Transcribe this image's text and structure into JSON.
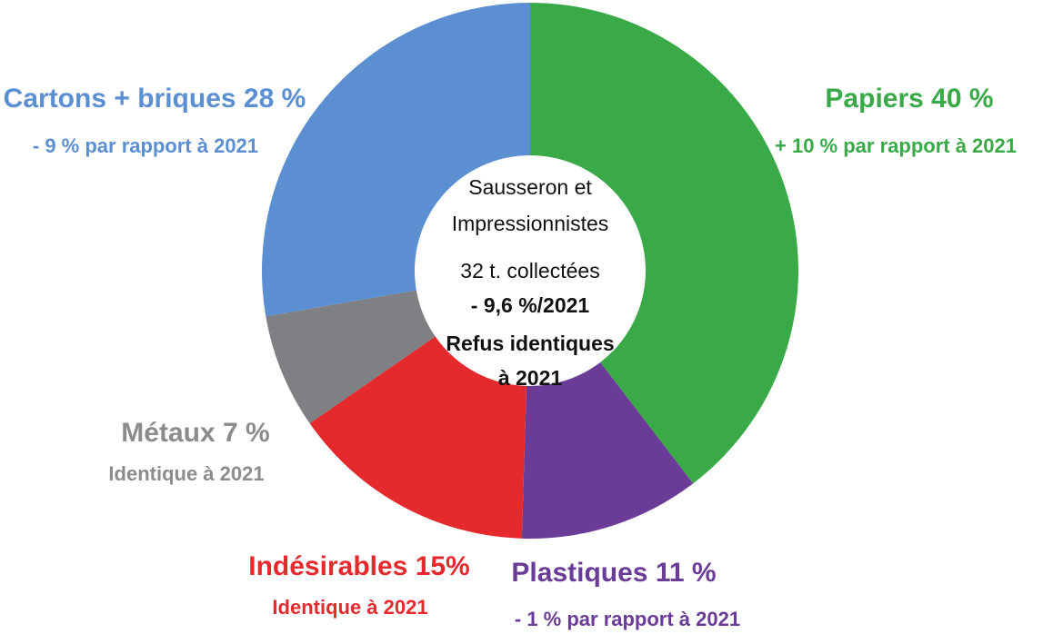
{
  "chart_data": {
    "type": "pie",
    "categories": [
      "Papiers",
      "Plastiques",
      "Indésirables",
      "Métaux",
      "Cartons + briques"
    ],
    "values": [
      40,
      11,
      15,
      7,
      28
    ],
    "value_labels": [
      "40 %",
      "11 %",
      "15%",
      "7 %",
      "28 %"
    ],
    "colors": [
      "#3aa948",
      "#6a3c97",
      "#e52a2e",
      "#7f8083",
      "#5b8fd2"
    ],
    "label_colors": [
      "#3aa948",
      "#6a3c97",
      "#e52a2e",
      "#8c8c8c",
      "#5b8fd2"
    ],
    "notes": [
      "+ 10 % par rapport à 2021",
      "- 1 % par rapport à 2021",
      "Identique à 2021",
      "Identique à 2021",
      "- 9 % par rapport à 2021"
    ],
    "center_text": [
      "Sausseron et",
      "Impressionnistes",
      "32 t. collectées",
      "- 9,6 %/2021",
      "Refus identiques",
      "à 2021"
    ]
  }
}
